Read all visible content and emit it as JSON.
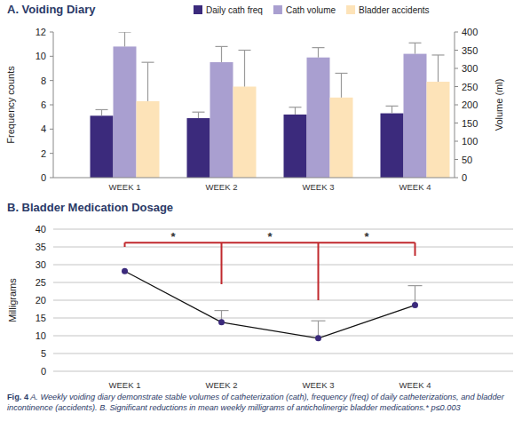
{
  "chart_data": [
    {
      "type": "bar",
      "title": "A. Voiding Diary",
      "categories": [
        "WEEK 1",
        "WEEK 2",
        "WEEK 3",
        "WEEK 4"
      ],
      "y_label": "Frequency counts",
      "y2_label": "Volume (ml)",
      "ylim": [
        0,
        12
      ],
      "yticks": [
        0,
        2,
        4,
        6,
        8,
        10,
        12
      ],
      "y2lim": [
        0,
        400
      ],
      "y2ticks": [
        0,
        50,
        100,
        150,
        200,
        250,
        300,
        350,
        400
      ],
      "legend": "top",
      "series": [
        {
          "name": "Daily cath freq",
          "color": "#3b2a7c",
          "values": [
            5.1,
            4.9,
            5.2,
            5.3
          ],
          "errors": [
            0.5,
            0.5,
            0.6,
            0.6
          ]
        },
        {
          "name": "Cath volume",
          "color": "#a99fd0",
          "axis": "y2",
          "values": [
            360,
            317,
            330,
            340
          ],
          "errors": [
            40,
            43,
            27,
            30
          ]
        },
        {
          "name": "Bladder accidents",
          "color": "#fde3b8",
          "values": [
            6.3,
            7.5,
            6.6,
            7.9
          ],
          "errors": [
            3.2,
            3.0,
            2.0,
            2.2
          ]
        }
      ]
    },
    {
      "type": "line",
      "title": "B. Bladder Medication Dosage",
      "categories": [
        "WEEK 1",
        "WEEK 2",
        "WEEK 3",
        "WEEK 4"
      ],
      "y_label": "Milligrams",
      "ylim": [
        0,
        40
      ],
      "yticks": [
        0,
        5,
        10,
        15,
        20,
        25,
        30,
        35,
        40
      ],
      "grid": true,
      "color": "#3b2a7c",
      "marker": "circle",
      "values": [
        28.2,
        13.8,
        9.3,
        18.6
      ],
      "errors": [
        null,
        3.3,
        4.9,
        5.5
      ],
      "brackets": {
        "y": 36.2,
        "legs": [
          35,
          24.5,
          20,
          32.5
        ],
        "color": "#c0282d"
      },
      "significance": [
        {
          "between": [
            "WEEK 1",
            "WEEK 2"
          ],
          "label": "*"
        },
        {
          "between": [
            "WEEK 2",
            "WEEK 3"
          ],
          "label": "*"
        },
        {
          "between": [
            "WEEK 3",
            "WEEK 4"
          ],
          "label": "*"
        }
      ]
    }
  ],
  "caption": {
    "label": "Fig. 4",
    "text": "A. Weekly voiding diary demonstrate stable volumes of catheterization (cath), frequency (freq) of daily catheterizations, and bladder incontinence (accidents). B. Significant reductions in mean weekly milligrams of anticholinergic bladder medications.* p≤0.003"
  }
}
